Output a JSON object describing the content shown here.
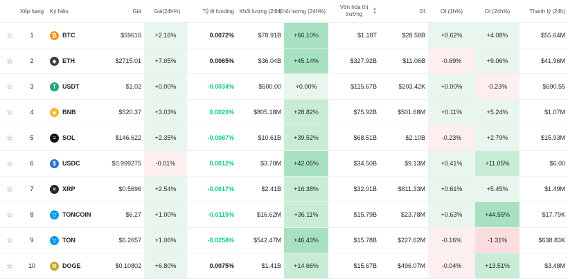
{
  "headers": {
    "rank": "Xếp hạng",
    "symbol": "Ký hiệu",
    "price": "Giá",
    "change": "Giá(24h%)",
    "funding": "Tỷ lệ funding",
    "volume": "Khối lượng (24h)",
    "volume_pct": "Khối lượng (24h%)",
    "mcap": "Vốn hóa thị trường",
    "oi": "OI",
    "oi_1h": "OI (1h%)",
    "oi_24h": "OI (24h%)",
    "liq": "Thanh lý (24h)"
  },
  "rows": [
    {
      "rank": "1",
      "symbol": "BTC",
      "icon": "btc-icon",
      "icon_color": "#f7931a",
      "icon_glyph": "₿",
      "price": "$59616",
      "change": "+2.16%",
      "funding": "0.0072%",
      "volume": "$78.91B",
      "volume_pct": "+66.10%",
      "mcap": "$1.18T",
      "oi": "$28.58B",
      "oi_1h": "+0.62%",
      "oi_24h": "+4.08%",
      "liq": "$55.64M"
    },
    {
      "rank": "2",
      "symbol": "ETH",
      "icon": "eth-icon",
      "icon_color": "#3c3c3d",
      "icon_glyph": "◆",
      "price": "$2715.01",
      "change": "+7.05%",
      "funding": "0.0065%",
      "volume": "$36.04B",
      "volume_pct": "+45.14%",
      "mcap": "$327.92B",
      "oi": "$11.06B",
      "oi_1h": "-0.69%",
      "oi_24h": "+9.06%",
      "liq": "$41.96M"
    },
    {
      "rank": "3",
      "symbol": "USDT",
      "icon": "usdt-icon",
      "icon_color": "#26a17b",
      "icon_glyph": "T",
      "price": "$1.02",
      "change": "+0.00%",
      "funding": "-0.0034%",
      "volume": "$500.00",
      "volume_pct": "+0.00%",
      "mcap": "$115.67B",
      "oi": "$203.42K",
      "oi_1h": "+0.00%",
      "oi_24h": "-0.23%",
      "liq": "$690.55"
    },
    {
      "rank": "4",
      "symbol": "BNB",
      "icon": "bnb-icon",
      "icon_color": "#f3ba2f",
      "icon_glyph": "◈",
      "price": "$520.37",
      "change": "+3.03%",
      "funding": "0.0020%",
      "volume": "$805.18M",
      "volume_pct": "+28.82%",
      "mcap": "$75.92B",
      "oi": "$501.68M",
      "oi_1h": "+0.11%",
      "oi_24h": "+5.24%",
      "liq": "$1.07M"
    },
    {
      "rank": "5",
      "symbol": "SOL",
      "icon": "sol-icon",
      "icon_color": "#111111",
      "icon_glyph": "≡",
      "price": "$146.622",
      "change": "+2.35%",
      "funding": "-0.0087%",
      "volume": "$10.61B",
      "volume_pct": "+39.52%",
      "mcap": "$68.51B",
      "oi": "$2.10B",
      "oi_1h": "-0.23%",
      "oi_24h": "+2.79%",
      "liq": "$15.93M"
    },
    {
      "rank": "6",
      "symbol": "USDC",
      "icon": "usdc-icon",
      "icon_color": "#2775ca",
      "icon_glyph": "$",
      "price": "$0.999275",
      "change": "-0.01%",
      "funding": "0.0012%",
      "volume": "$3.70M",
      "volume_pct": "+42.05%",
      "mcap": "$34.50B",
      "oi": "$9.13M",
      "oi_1h": "+0.41%",
      "oi_24h": "+11.05%",
      "liq": "$6.00"
    },
    {
      "rank": "7",
      "symbol": "XRP",
      "icon": "xrp-icon",
      "icon_color": "#23292f",
      "icon_glyph": "✕",
      "price": "$0.5696",
      "change": "+2.54%",
      "funding": "-0.0017%",
      "volume": "$2.41B",
      "volume_pct": "+16.38%",
      "mcap": "$32.01B",
      "oi": "$611.33M",
      "oi_1h": "+0.61%",
      "oi_24h": "+5.45%",
      "liq": "$1.49M"
    },
    {
      "rank": "8",
      "symbol": "TONCOIN",
      "icon": "toncoin-icon",
      "icon_color": "#0098ea",
      "icon_glyph": "▽",
      "price": "$6.27",
      "change": "+1.00%",
      "funding": "-0.0115%",
      "volume": "$16.62M",
      "volume_pct": "+36.11%",
      "mcap": "$15.79B",
      "oi": "$23.78M",
      "oi_1h": "+0.63%",
      "oi_24h": "+44.55%",
      "liq": "$17.79K"
    },
    {
      "rank": "9",
      "symbol": "TON",
      "icon": "ton-icon",
      "icon_color": "#0098ea",
      "icon_glyph": "▽",
      "price": "$6.2657",
      "change": "+1.06%",
      "funding": "-0.0258%",
      "volume": "$542.47M",
      "volume_pct": "+46.43%",
      "mcap": "$15.78B",
      "oi": "$227.62M",
      "oi_1h": "-0.16%",
      "oi_24h": "-1.31%",
      "liq": "$638.83K"
    },
    {
      "rank": "10",
      "symbol": "DOGE",
      "icon": "doge-icon",
      "icon_color": "#c2a633",
      "icon_glyph": "Ð",
      "price": "$0.10802",
      "change": "+6.80%",
      "funding": "0.0075%",
      "volume": "$1.41B",
      "volume_pct": "+14.66%",
      "mcap": "$15.67B",
      "oi": "$496.07M",
      "oi_1h": "-0.04%",
      "oi_24h": "+13.51%",
      "liq": "$3.48M"
    }
  ],
  "star_glyph": "☆"
}
